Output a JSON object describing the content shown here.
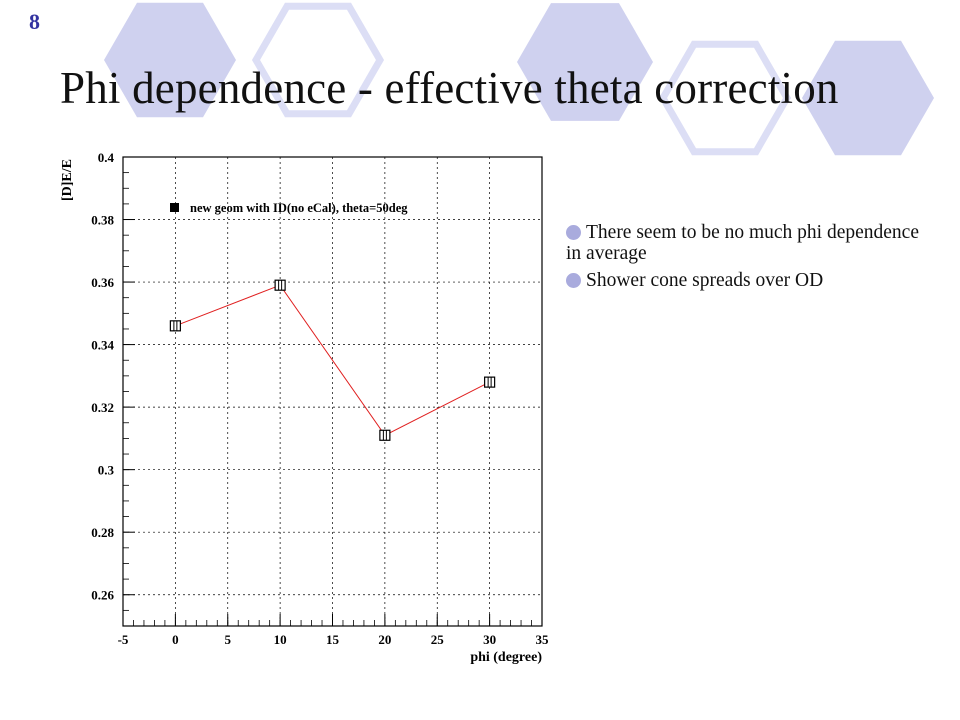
{
  "slide": {
    "number": "8",
    "title": "Phi dependence - effective theta correction"
  },
  "bullets": [
    "There seem to be no much phi dependence in average",
    "Shower cone spreads over OD"
  ],
  "colors": {
    "accent": "#3333a0",
    "decor_fill": "#cfd1ef",
    "decor_stroke": "#dcdef5",
    "bullet": "#a9abdd",
    "series_line": "#e02020"
  },
  "chart_data": {
    "type": "line",
    "xlabel": "phi (degree)",
    "ylabel": "[D]E/E",
    "xlim": [
      -5,
      35
    ],
    "ylim": [
      0.25,
      0.4
    ],
    "xticks": [
      -5,
      0,
      5,
      10,
      15,
      20,
      25,
      30,
      35
    ],
    "xtick_labels": [
      "-5",
      "0",
      "5",
      "10",
      "15",
      "20",
      "25",
      "30",
      "35"
    ],
    "yticks": [
      0.26,
      0.28,
      0.3,
      0.32,
      0.34,
      0.36,
      0.38,
      0.4
    ],
    "ytick_labels": [
      "0.26",
      "0.28",
      "0.3",
      "0.32",
      "0.34",
      "0.36",
      "0.38",
      "0.4"
    ],
    "grid": true,
    "legend_position": "top-left",
    "series": [
      {
        "name": "new geom with ID(no eCal), theta=50deg",
        "x": [
          0,
          10,
          20,
          30
        ],
        "y": [
          0.346,
          0.359,
          0.311,
          0.328
        ]
      }
    ]
  }
}
